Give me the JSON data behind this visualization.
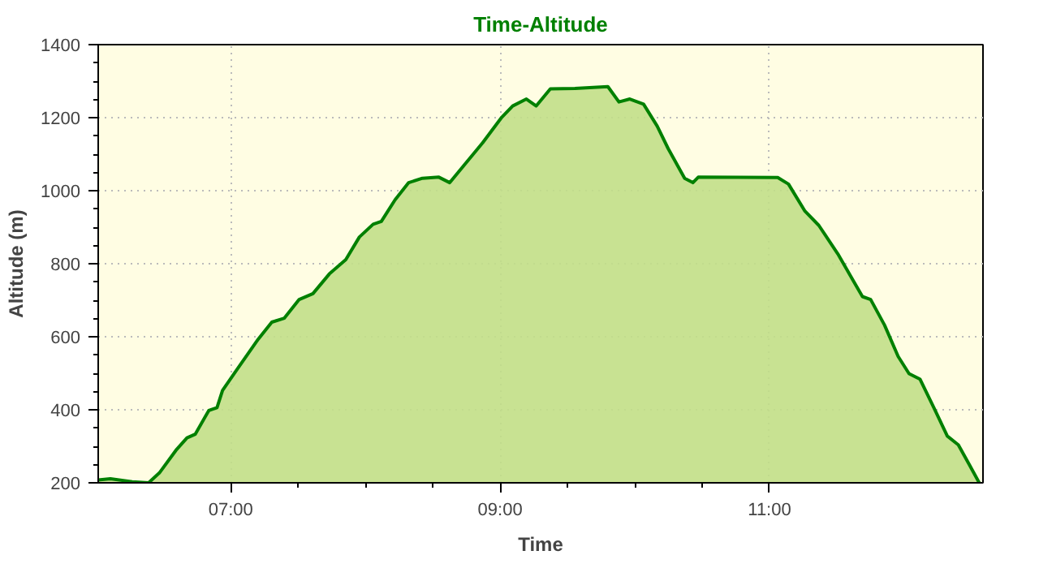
{
  "chart_data": {
    "type": "area",
    "title": "Time-Altitude",
    "xlabel": "Time",
    "ylabel": "Altitude (m)",
    "color": "#008000",
    "x": [
      6.016,
      6.106,
      6.268,
      6.39,
      6.47,
      6.593,
      6.675,
      6.736,
      6.837,
      6.898,
      6.939,
      7.04,
      7.203,
      7.305,
      7.398,
      7.508,
      7.61,
      7.732,
      7.854,
      7.955,
      8.057,
      8.118,
      8.22,
      8.321,
      8.423,
      8.545,
      8.626,
      8.728,
      8.87,
      9.012,
      9.093,
      9.195,
      9.268,
      9.373,
      9.556,
      9.8,
      9.882,
      9.963,
      10.065,
      10.166,
      10.248,
      10.37,
      10.431,
      10.471,
      11.061,
      11.141,
      11.263,
      11.366,
      11.507,
      11.629,
      11.69,
      11.751,
      11.854,
      11.955,
      12.036,
      12.117,
      12.22,
      12.32,
      12.402,
      12.483,
      12.557
    ],
    "values": [
      208,
      211,
      203,
      200,
      227,
      289,
      323,
      333,
      398,
      406,
      453,
      507,
      593,
      640,
      651,
      702,
      718,
      772,
      811,
      873,
      908,
      916,
      975,
      1022,
      1034,
      1037,
      1022,
      1068,
      1131,
      1201,
      1232,
      1251,
      1232,
      1279,
      1280,
      1285,
      1243,
      1251,
      1237,
      1177,
      1115,
      1034,
      1022,
      1037,
      1036,
      1018,
      944,
      905,
      827,
      749,
      710,
      702,
      632,
      546,
      499,
      484,
      406,
      328,
      304,
      250,
      200
    ],
    "xlim": [
      6.016,
      12.585
    ],
    "ylim": [
      200,
      1400
    ],
    "xticks": [
      {
        "value": 7,
        "label": "07:00"
      },
      {
        "value": 9,
        "label": "09:00"
      },
      {
        "value": 11,
        "label": "11:00"
      }
    ],
    "yticks": [
      200,
      400,
      600,
      800,
      1000,
      1200,
      1400
    ],
    "grid": true
  }
}
